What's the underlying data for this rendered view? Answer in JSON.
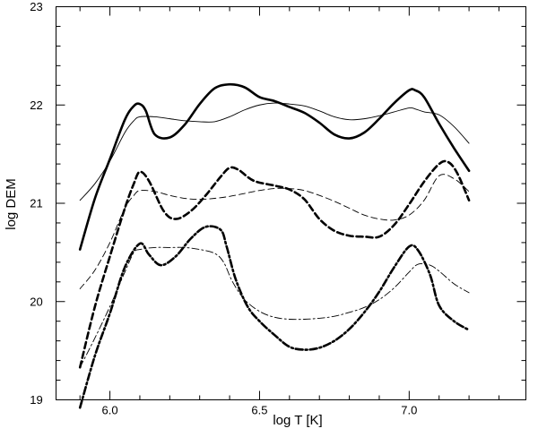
{
  "chart_data": {
    "type": "line",
    "xlabel": "log  T  [K]",
    "ylabel": "log  DEM",
    "xlim": [
      5.82,
      7.39
    ],
    "ylim": [
      19,
      23
    ],
    "xticks": [
      6.0,
      6.5,
      7.0
    ],
    "xtick_labels": [
      "6.0",
      "6.5",
      "7.0"
    ],
    "yticks": [
      19,
      20,
      21,
      22,
      23
    ],
    "ytick_labels": [
      "19",
      "20",
      "21",
      "22",
      "23"
    ],
    "grid": false,
    "series": [
      {
        "style": "thick-solid",
        "x": [
          5.9,
          5.95,
          6.0,
          6.05,
          6.08,
          6.1,
          6.12,
          6.15,
          6.2,
          6.25,
          6.3,
          6.35,
          6.4,
          6.45,
          6.5,
          6.55,
          6.6,
          6.65,
          6.7,
          6.75,
          6.8,
          6.85,
          6.9,
          6.95,
          7.0,
          7.02,
          7.05,
          7.1,
          7.15,
          7.2
        ],
        "y": [
          20.53,
          21.05,
          21.45,
          21.85,
          21.99,
          22.01,
          21.94,
          21.7,
          21.67,
          21.8,
          22.01,
          22.17,
          22.21,
          22.18,
          22.08,
          22.04,
          21.98,
          21.92,
          21.82,
          21.7,
          21.66,
          21.72,
          21.86,
          22.02,
          22.15,
          22.15,
          22.08,
          21.81,
          21.56,
          21.33
        ]
      },
      {
        "style": "thin-solid",
        "x": [
          5.9,
          5.95,
          6.0,
          6.05,
          6.08,
          6.1,
          6.15,
          6.2,
          6.25,
          6.3,
          6.35,
          6.4,
          6.45,
          6.5,
          6.55,
          6.6,
          6.65,
          6.7,
          6.75,
          6.8,
          6.85,
          6.9,
          6.95,
          7.0,
          7.02,
          7.05,
          7.1,
          7.15,
          7.2
        ],
        "y": [
          21.03,
          21.2,
          21.43,
          21.72,
          21.84,
          21.88,
          21.88,
          21.86,
          21.84,
          21.83,
          21.83,
          21.88,
          21.95,
          22.0,
          22.02,
          22.01,
          21.99,
          21.94,
          21.88,
          21.85,
          21.86,
          21.89,
          21.93,
          21.97,
          21.96,
          21.93,
          21.9,
          21.78,
          21.61
        ]
      },
      {
        "style": "thick-dashed",
        "x": [
          5.9,
          5.95,
          6.0,
          6.05,
          6.08,
          6.1,
          6.13,
          6.18,
          6.22,
          6.27,
          6.32,
          6.37,
          6.4,
          6.43,
          6.48,
          6.55,
          6.6,
          6.65,
          6.7,
          6.75,
          6.8,
          6.85,
          6.9,
          6.95,
          7.0,
          7.05,
          7.1,
          7.13,
          7.16,
          7.2
        ],
        "y": [
          19.33,
          19.95,
          20.46,
          20.95,
          21.2,
          21.32,
          21.23,
          20.92,
          20.84,
          20.92,
          21.08,
          21.27,
          21.36,
          21.34,
          21.23,
          21.18,
          21.14,
          21.04,
          20.84,
          20.72,
          20.67,
          20.66,
          20.66,
          20.78,
          20.99,
          21.22,
          21.4,
          21.42,
          21.31,
          21.03
        ]
      },
      {
        "style": "thin-dashed",
        "x": [
          5.9,
          5.95,
          6.0,
          6.05,
          6.08,
          6.1,
          6.15,
          6.2,
          6.25,
          6.3,
          6.35,
          6.4,
          6.45,
          6.5,
          6.55,
          6.6,
          6.65,
          6.7,
          6.75,
          6.8,
          6.85,
          6.9,
          6.95,
          7.0,
          7.05,
          7.1,
          7.15,
          7.2
        ],
        "y": [
          20.13,
          20.32,
          20.6,
          20.95,
          21.08,
          21.13,
          21.12,
          21.08,
          21.05,
          21.04,
          21.05,
          21.07,
          21.1,
          21.13,
          21.15,
          21.15,
          21.13,
          21.08,
          21.02,
          20.95,
          20.88,
          20.84,
          20.83,
          20.88,
          21.03,
          21.28,
          21.25,
          21.12
        ]
      },
      {
        "style": "thick-dash-dot",
        "x": [
          5.9,
          5.95,
          6.0,
          6.05,
          6.1,
          6.13,
          6.17,
          6.22,
          6.27,
          6.32,
          6.37,
          6.39,
          6.42,
          6.46,
          6.5,
          6.55,
          6.6,
          6.65,
          6.7,
          6.75,
          6.8,
          6.85,
          6.9,
          6.95,
          7.0,
          7.03,
          7.07,
          7.1,
          7.15,
          7.2
        ],
        "y": [
          18.92,
          19.45,
          19.88,
          20.35,
          20.59,
          20.48,
          20.37,
          20.46,
          20.64,
          20.76,
          20.73,
          20.56,
          20.23,
          19.95,
          19.8,
          19.66,
          19.54,
          19.51,
          19.53,
          19.6,
          19.72,
          19.89,
          20.1,
          20.35,
          20.56,
          20.52,
          20.27,
          19.96,
          19.8,
          19.71
        ]
      },
      {
        "style": "thin-dash-dot",
        "x": [
          5.9,
          5.95,
          6.0,
          6.05,
          6.08,
          6.1,
          6.15,
          6.2,
          6.25,
          6.3,
          6.35,
          6.38,
          6.41,
          6.45,
          6.5,
          6.55,
          6.6,
          6.65,
          6.7,
          6.75,
          6.8,
          6.85,
          6.9,
          6.95,
          7.0,
          7.03,
          7.07,
          7.1,
          7.15,
          7.2
        ],
        "y": [
          19.33,
          19.63,
          19.95,
          20.3,
          20.5,
          20.53,
          20.55,
          20.55,
          20.55,
          20.53,
          20.49,
          20.4,
          20.2,
          20.02,
          19.9,
          19.84,
          19.82,
          19.82,
          19.83,
          19.85,
          19.89,
          19.94,
          20.02,
          20.14,
          20.3,
          20.38,
          20.37,
          20.31,
          20.18,
          20.09
        ]
      }
    ]
  }
}
